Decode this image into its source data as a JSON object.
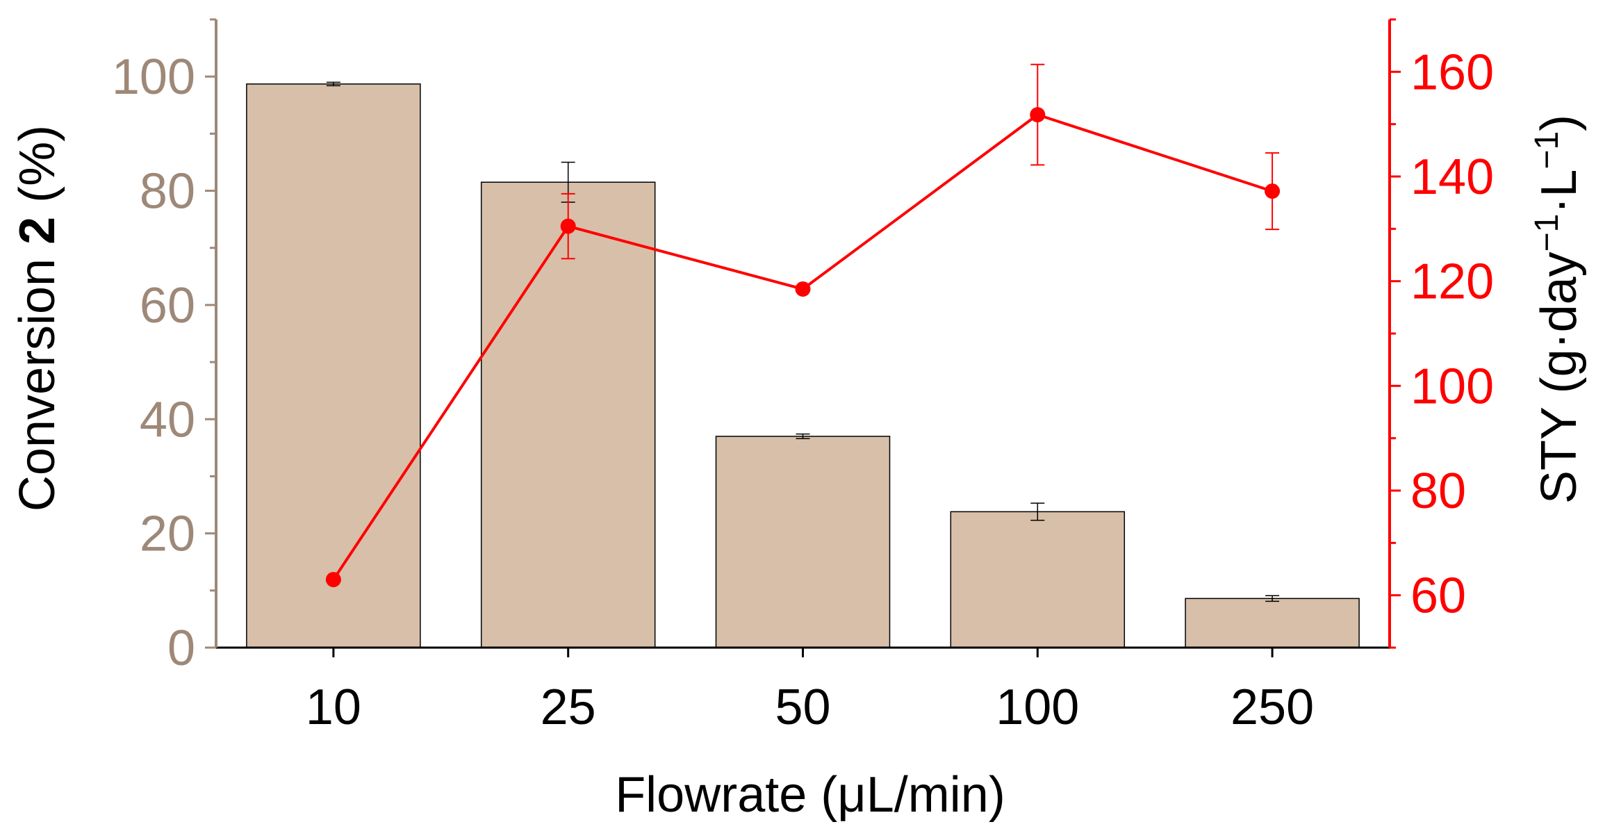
{
  "chart_data": {
    "type": "bar",
    "xlabel": "Flowrate (μL/min)",
    "categories": [
      "10",
      "25",
      "50",
      "100",
      "250"
    ],
    "ylabel_left": {
      "prefix": "Conversion ",
      "bold": "2",
      "suffix": " (%)"
    },
    "ylabel_right": {
      "base": "STY (g·day",
      "exp1": "−1",
      "mid": "·L",
      "exp2": "−1",
      "end": ")"
    },
    "ylim_left": [
      0,
      110
    ],
    "ylim_right": [
      50,
      170
    ],
    "yticks_left": [
      "0",
      "20",
      "40",
      "60",
      "80",
      "100"
    ],
    "yticks_right": [
      "60",
      "80",
      "100",
      "120",
      "140",
      "160"
    ],
    "series": [
      {
        "name": "Conversion 2",
        "kind": "bar",
        "axis": "left",
        "values": [
          98.7,
          81.5,
          37.0,
          23.8,
          8.6
        ],
        "errors": [
          0.3,
          3.5,
          0.4,
          1.5,
          0.5
        ],
        "color": "#d7bfa9"
      },
      {
        "name": "STY",
        "kind": "line",
        "axis": "right",
        "values": [
          63.0,
          130.5,
          118.5,
          151.8,
          137.2
        ],
        "errors": [
          0.0,
          6.2,
          0.5,
          9.6,
          7.3
        ],
        "color": "#ff0000"
      }
    ],
    "colors": {
      "left_axis": "#9e8878",
      "right_axis": "#ff0000",
      "bar_fill": "#d7bfa9",
      "bar_edge": "#000000",
      "text": "#000000"
    }
  }
}
